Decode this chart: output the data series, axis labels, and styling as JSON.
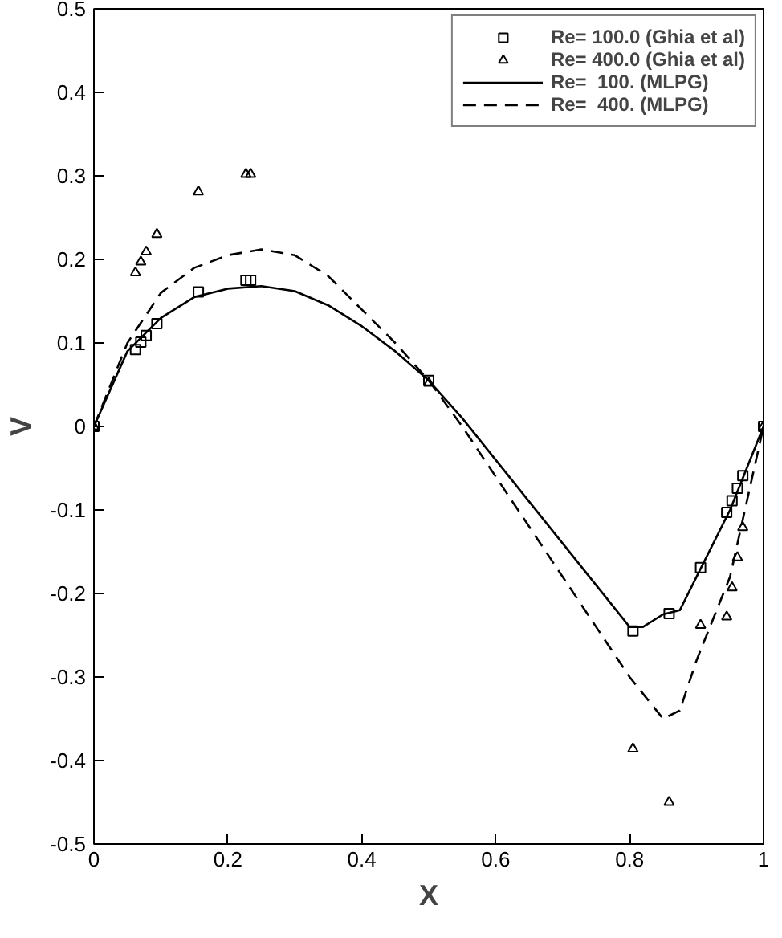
{
  "chart_data": {
    "type": "line",
    "xlabel": "X",
    "ylabel": "V",
    "xlim": [
      0,
      1
    ],
    "ylim": [
      -0.5,
      0.5
    ],
    "xticks": [
      0,
      0.2,
      0.4,
      0.6,
      0.8,
      1
    ],
    "yticks": [
      -0.5,
      -0.4,
      -0.3,
      -0.2,
      -0.1,
      0,
      0.1,
      0.2,
      0.3,
      0.4,
      0.5
    ],
    "grid": false,
    "legend": "top right",
    "series": [
      {
        "type": "scatter",
        "marker": "square",
        "name": "Re= 100.0 (Ghia et al)",
        "color": "#000000",
        "x": [
          1.0,
          0.969,
          0.961,
          0.953,
          0.945,
          0.906,
          0.859,
          0.805,
          0.5,
          0.234,
          0.227,
          0.156,
          0.094,
          0.078,
          0.07,
          0.062,
          0.0
        ],
        "values": [
          0,
          -0.059,
          -0.074,
          -0.089,
          -0.103,
          -0.169,
          -0.224,
          -0.245,
          0.055,
          0.175,
          0.175,
          0.161,
          0.123,
          0.109,
          0.101,
          0.092,
          0
        ]
      },
      {
        "type": "scatter",
        "marker": "triangle",
        "name": "Re= 400.0 (Ghia et al)",
        "color": "#000000",
        "x": [
          1.0,
          0.969,
          0.961,
          0.953,
          0.945,
          0.906,
          0.859,
          0.805,
          0.5,
          0.234,
          0.227,
          0.156,
          0.094,
          0.078,
          0.07,
          0.062,
          0.0
        ],
        "values": [
          0,
          -0.121,
          -0.157,
          -0.193,
          -0.228,
          -0.238,
          -0.45,
          -0.386,
          0.052,
          0.302,
          0.302,
          0.281,
          0.23,
          0.209,
          0.197,
          0.184,
          0
        ]
      },
      {
        "line_style": "solid",
        "name": "Re=  100. (MLPG)",
        "color": "#000000",
        "x": [
          0,
          0.05,
          0.1,
          0.15,
          0.2,
          0.25,
          0.3,
          0.35,
          0.4,
          0.45,
          0.5,
          0.55,
          0.6,
          0.65,
          0.7,
          0.75,
          0.8,
          0.82,
          0.85,
          0.875,
          0.9,
          0.95,
          1.0
        ],
        "values": [
          0,
          0.09,
          0.13,
          0.155,
          0.165,
          0.168,
          0.162,
          0.145,
          0.12,
          0.09,
          0.055,
          0.01,
          -0.04,
          -0.09,
          -0.14,
          -0.19,
          -0.24,
          -0.24,
          -0.225,
          -0.22,
          -0.18,
          -0.1,
          0
        ]
      },
      {
        "line_style": "dashed",
        "name": "Re=  400. (MLPG)",
        "color": "#000000",
        "x": [
          0,
          0.05,
          0.1,
          0.15,
          0.2,
          0.25,
          0.3,
          0.35,
          0.4,
          0.45,
          0.5,
          0.55,
          0.6,
          0.65,
          0.7,
          0.75,
          0.8,
          0.85,
          0.875,
          0.9,
          0.95,
          1.0
        ],
        "values": [
          0,
          0.1,
          0.16,
          0.19,
          0.205,
          0.212,
          0.205,
          0.18,
          0.14,
          0.1,
          0.055,
          0.0,
          -0.06,
          -0.12,
          -0.18,
          -0.24,
          -0.3,
          -0.35,
          -0.34,
          -0.28,
          -0.18,
          0
        ]
      }
    ]
  }
}
